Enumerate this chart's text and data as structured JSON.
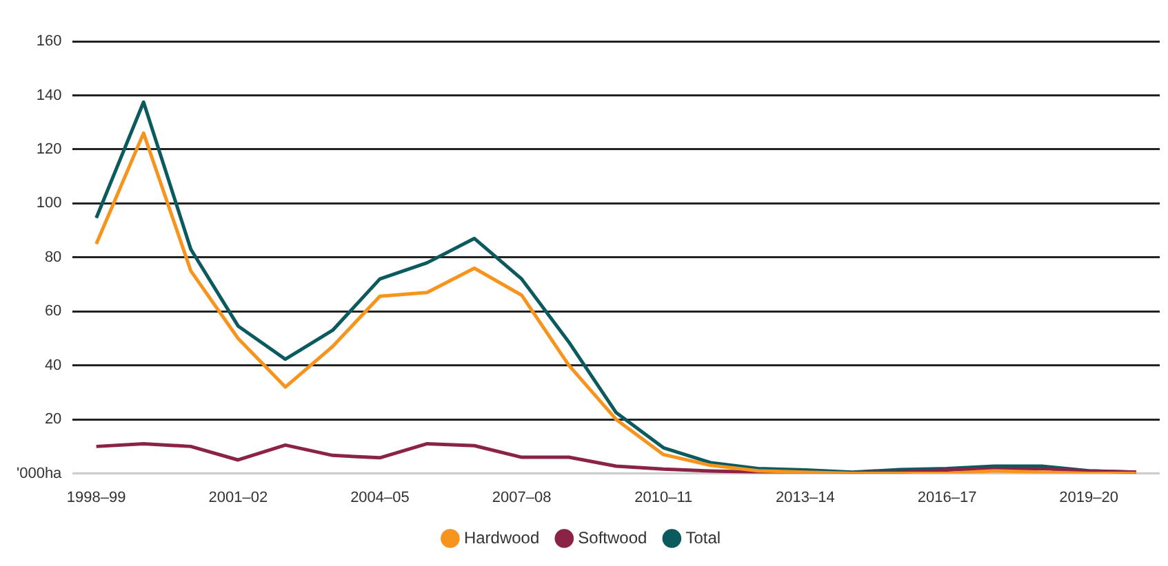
{
  "chart_data": {
    "type": "line",
    "categories": [
      "1998–99",
      null,
      null,
      "2001–02",
      null,
      null,
      "2004–05",
      null,
      null,
      "2007–08",
      null,
      null,
      "2010–11",
      null,
      null,
      "2013–14",
      null,
      null,
      "2016–17",
      null,
      null,
      "2019–20",
      null
    ],
    "series": [
      {
        "name": "Hardwood",
        "color": "#f7941d",
        "values": [
          85,
          126,
          75,
          50,
          32,
          47,
          65.6,
          67,
          76,
          66,
          40,
          20,
          7,
          3,
          1,
          0.5,
          0,
          0,
          0,
          1,
          0.5,
          0,
          0
        ]
      },
      {
        "name": "Softwood",
        "color": "#8b2346",
        "values": [
          10,
          11,
          10,
          5,
          10.5,
          6.7,
          5.8,
          11,
          10.3,
          6,
          6,
          2.7,
          1.6,
          0.9,
          0.5,
          0.3,
          0.3,
          0.5,
          1.3,
          1.8,
          1.8,
          0.9,
          0.5
        ]
      },
      {
        "name": "Total",
        "color": "#0b5a5e",
        "values": [
          94.6,
          137.5,
          83,
          54.6,
          42.3,
          53,
          72,
          78,
          87,
          72,
          48.6,
          22.5,
          9.5,
          4,
          1.8,
          1.3,
          0.5,
          1.4,
          1.8,
          2.7,
          2.7,
          1,
          0.5
        ]
      }
    ],
    "ylim": [
      0,
      160
    ],
    "yticks": [
      {
        "value": 0,
        "label": "'000ha"
      },
      20,
      40,
      60,
      80,
      100,
      120,
      140,
      160
    ],
    "grid": "y",
    "legend": "bottom",
    "marker": "none",
    "line_style": "solid"
  }
}
